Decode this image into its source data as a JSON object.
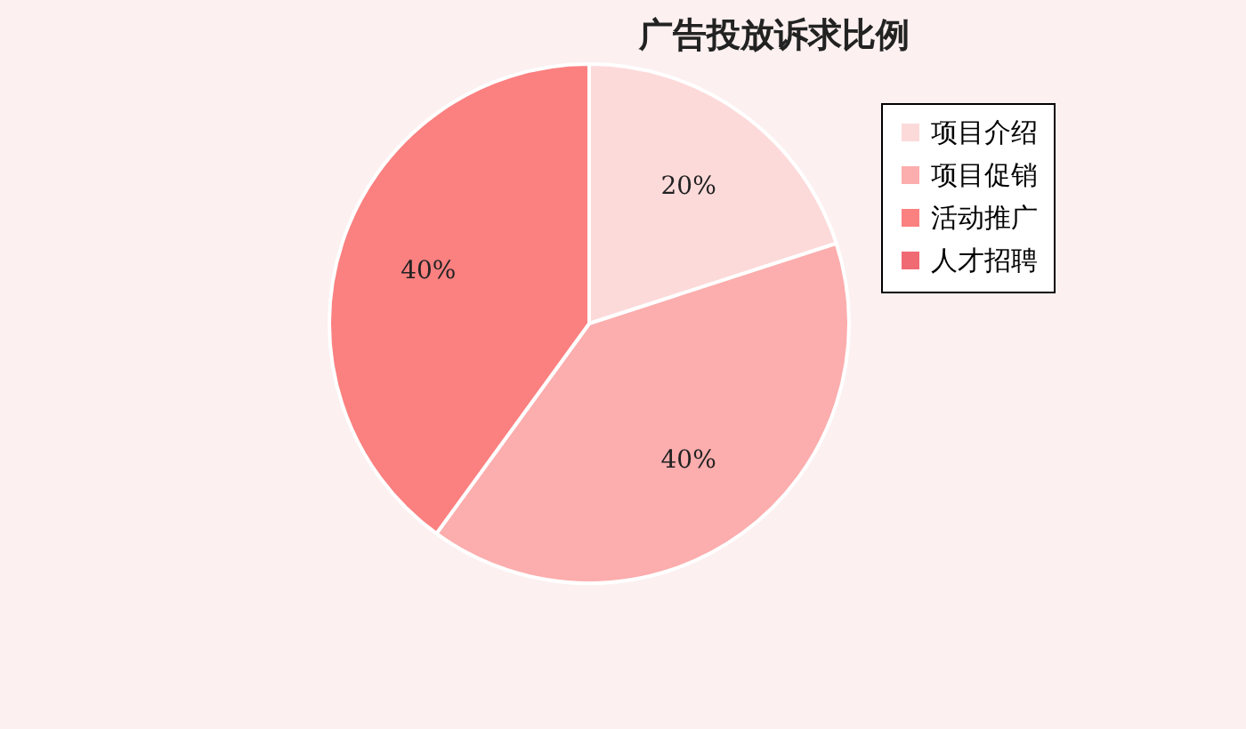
{
  "chart_data": {
    "type": "pie",
    "title": "广告投放诉求比例",
    "categories": [
      "项目介绍",
      "项目促销",
      "活动推广",
      "人才招聘"
    ],
    "values": [
      20,
      40,
      40,
      0
    ],
    "colors": [
      "#fddada",
      "#fcadad",
      "#fb8080",
      "#f06a73"
    ],
    "value_labels": [
      "20%",
      "40%",
      "40%",
      null
    ],
    "legend": "top right"
  }
}
